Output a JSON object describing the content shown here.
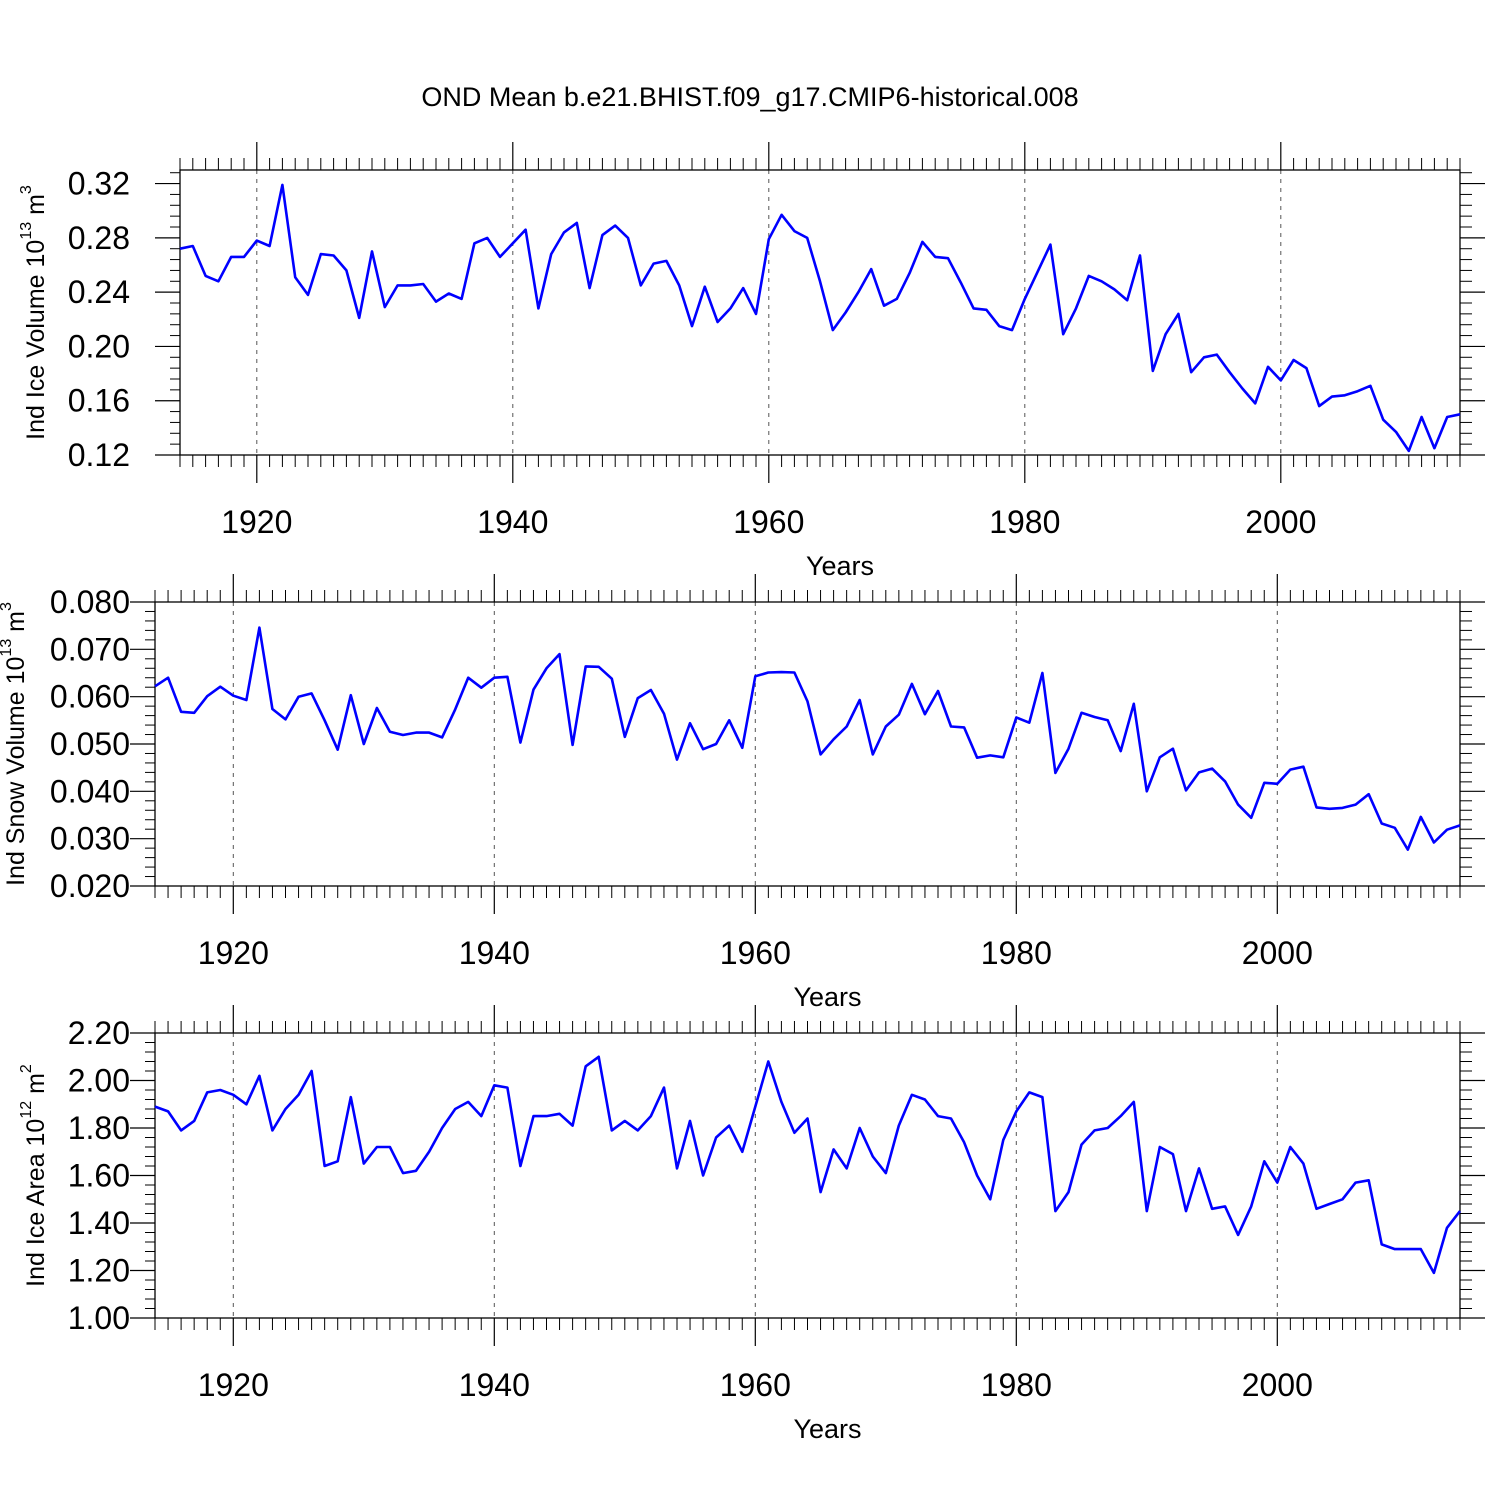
{
  "title": "OND Mean b.e21.BHIST.f09_g17.CMIP6-historical.008",
  "colors": {
    "line": "#0000ff",
    "axis": "#000000",
    "grid": "#555555"
  },
  "chart_data": [
    {
      "type": "line",
      "title": "OND Mean b.e21.BHIST.f09_g17.CMIP6-historical.008",
      "ylabel": "Ind Ice Volume",
      "yunit": {
        "base": "10",
        "exp": "13",
        "unit": "m",
        "unit_exp": "3"
      },
      "xlabel": "Years",
      "xlim": [
        1914,
        2014
      ],
      "ylim": [
        0.12,
        0.33
      ],
      "xticks": [
        1920,
        1940,
        1960,
        1980,
        2000
      ],
      "xtick_labels": [
        "1920",
        "1940",
        "1960",
        "1980",
        "2000"
      ],
      "yticks": [
        0.12,
        0.16,
        0.2,
        0.24,
        0.28,
        0.32
      ],
      "ytick_labels": [
        "0.12",
        "0.16",
        "0.20",
        "0.24",
        "0.28",
        "0.32"
      ],
      "grid": "vertical dashed at major x ticks",
      "x_start": 1914,
      "values": [
        0.272,
        0.274,
        0.252,
        0.248,
        0.266,
        0.266,
        0.278,
        0.274,
        0.319,
        0.251,
        0.238,
        0.268,
        0.267,
        0.256,
        0.221,
        0.27,
        0.229,
        0.245,
        0.245,
        0.246,
        0.233,
        0.239,
        0.235,
        0.276,
        0.28,
        0.266,
        0.276,
        0.286,
        0.228,
        0.268,
        0.284,
        0.291,
        0.243,
        0.282,
        0.289,
        0.28,
        0.245,
        0.261,
        0.263,
        0.245,
        0.215,
        0.244,
        0.218,
        0.228,
        0.243,
        0.224,
        0.279,
        0.297,
        0.285,
        0.28,
        0.248,
        0.212,
        0.225,
        0.24,
        0.257,
        0.23,
        0.235,
        0.254,
        0.277,
        0.266,
        0.265,
        0.247,
        0.228,
        0.227,
        0.215,
        0.212,
        0.235,
        0.255,
        0.275,
        0.209,
        0.228,
        0.252,
        0.248,
        0.242,
        0.234,
        0.267,
        0.182,
        0.209,
        0.224,
        0.181,
        0.192,
        0.194,
        0.181,
        0.169,
        0.158,
        0.185,
        0.175,
        0.19,
        0.184,
        0.156,
        0.163,
        0.164,
        0.167,
        0.171,
        0.146,
        0.137,
        0.123,
        0.148,
        0.125,
        0.148,
        0.15
      ]
    },
    {
      "type": "line",
      "ylabel": "Ind Snow Volume",
      "yunit": {
        "base": "10",
        "exp": "13",
        "unit": "m",
        "unit_exp": "3"
      },
      "xlabel": "Years",
      "xlim": [
        1914,
        2014
      ],
      "ylim": [
        0.02,
        0.08
      ],
      "xticks": [
        1920,
        1940,
        1960,
        1980,
        2000
      ],
      "xtick_labels": [
        "1920",
        "1940",
        "1960",
        "1980",
        "2000"
      ],
      "yticks": [
        0.02,
        0.03,
        0.04,
        0.05,
        0.06,
        0.07,
        0.08
      ],
      "ytick_labels": [
        "0.020",
        "0.030",
        "0.040",
        "0.050",
        "0.060",
        "0.070",
        "0.080"
      ],
      "grid": "vertical dashed at major x ticks",
      "x_start": 1914,
      "values": [
        0.0622,
        0.064,
        0.0568,
        0.0566,
        0.0601,
        0.0621,
        0.0602,
        0.0593,
        0.0746,
        0.0574,
        0.0552,
        0.06,
        0.0607,
        0.055,
        0.0488,
        0.0603,
        0.05,
        0.0576,
        0.0526,
        0.0519,
        0.0524,
        0.0524,
        0.0514,
        0.0573,
        0.064,
        0.0619,
        0.064,
        0.0642,
        0.0503,
        0.0615,
        0.066,
        0.069,
        0.0498,
        0.0664,
        0.0663,
        0.0638,
        0.0515,
        0.0597,
        0.0614,
        0.0564,
        0.0467,
        0.0544,
        0.0489,
        0.05,
        0.055,
        0.0492,
        0.0643,
        0.0651,
        0.0652,
        0.0651,
        0.059,
        0.0478,
        0.051,
        0.0537,
        0.0593,
        0.0478,
        0.0537,
        0.0562,
        0.0627,
        0.0563,
        0.0612,
        0.0537,
        0.0535,
        0.0471,
        0.0476,
        0.0472,
        0.0556,
        0.0545,
        0.065,
        0.0439,
        0.049,
        0.0566,
        0.0557,
        0.055,
        0.0485,
        0.0585,
        0.04,
        0.0472,
        0.049,
        0.0402,
        0.044,
        0.0448,
        0.0421,
        0.0372,
        0.0344,
        0.0418,
        0.0416,
        0.0446,
        0.0452,
        0.0366,
        0.0363,
        0.0365,
        0.0372,
        0.0394,
        0.0332,
        0.0323,
        0.0277,
        0.0346,
        0.0292,
        0.0319,
        0.0328
      ]
    },
    {
      "type": "line",
      "ylabel": "Ind Ice Area",
      "yunit": {
        "base": "10",
        "exp": "12",
        "unit": "m",
        "unit_exp": "2"
      },
      "xlabel": "Years",
      "xlim": [
        1914,
        2014
      ],
      "ylim": [
        1.0,
        2.2
      ],
      "xticks": [
        1920,
        1940,
        1960,
        1980,
        2000
      ],
      "xtick_labels": [
        "1920",
        "1940",
        "1960",
        "1980",
        "2000"
      ],
      "yticks": [
        1.0,
        1.2,
        1.4,
        1.6,
        1.8,
        2.0,
        2.2
      ],
      "ytick_labels": [
        "1.00",
        "1.20",
        "1.40",
        "1.60",
        "1.80",
        "2.00",
        "2.20"
      ],
      "grid": "vertical dashed at major x ticks",
      "x_start": 1914,
      "values": [
        1.89,
        1.87,
        1.79,
        1.83,
        1.95,
        1.96,
        1.94,
        1.9,
        2.02,
        1.79,
        1.88,
        1.94,
        2.04,
        1.64,
        1.66,
        1.93,
        1.65,
        1.72,
        1.72,
        1.61,
        1.62,
        1.7,
        1.8,
        1.88,
        1.91,
        1.85,
        1.98,
        1.97,
        1.64,
        1.85,
        1.85,
        1.86,
        1.81,
        2.06,
        2.1,
        1.79,
        1.83,
        1.79,
        1.85,
        1.97,
        1.63,
        1.83,
        1.6,
        1.76,
        1.81,
        1.7,
        1.89,
        2.08,
        1.91,
        1.78,
        1.84,
        1.53,
        1.71,
        1.63,
        1.8,
        1.68,
        1.61,
        1.81,
        1.94,
        1.92,
        1.85,
        1.84,
        1.74,
        1.6,
        1.5,
        1.75,
        1.87,
        1.95,
        1.93,
        1.45,
        1.53,
        1.73,
        1.79,
        1.8,
        1.85,
        1.91,
        1.45,
        1.72,
        1.69,
        1.45,
        1.63,
        1.46,
        1.47,
        1.35,
        1.47,
        1.66,
        1.57,
        1.72,
        1.65,
        1.46,
        1.48,
        1.5,
        1.57,
        1.58,
        1.31,
        1.29,
        1.29,
        1.29,
        1.19,
        1.38,
        1.45
      ]
    }
  ]
}
